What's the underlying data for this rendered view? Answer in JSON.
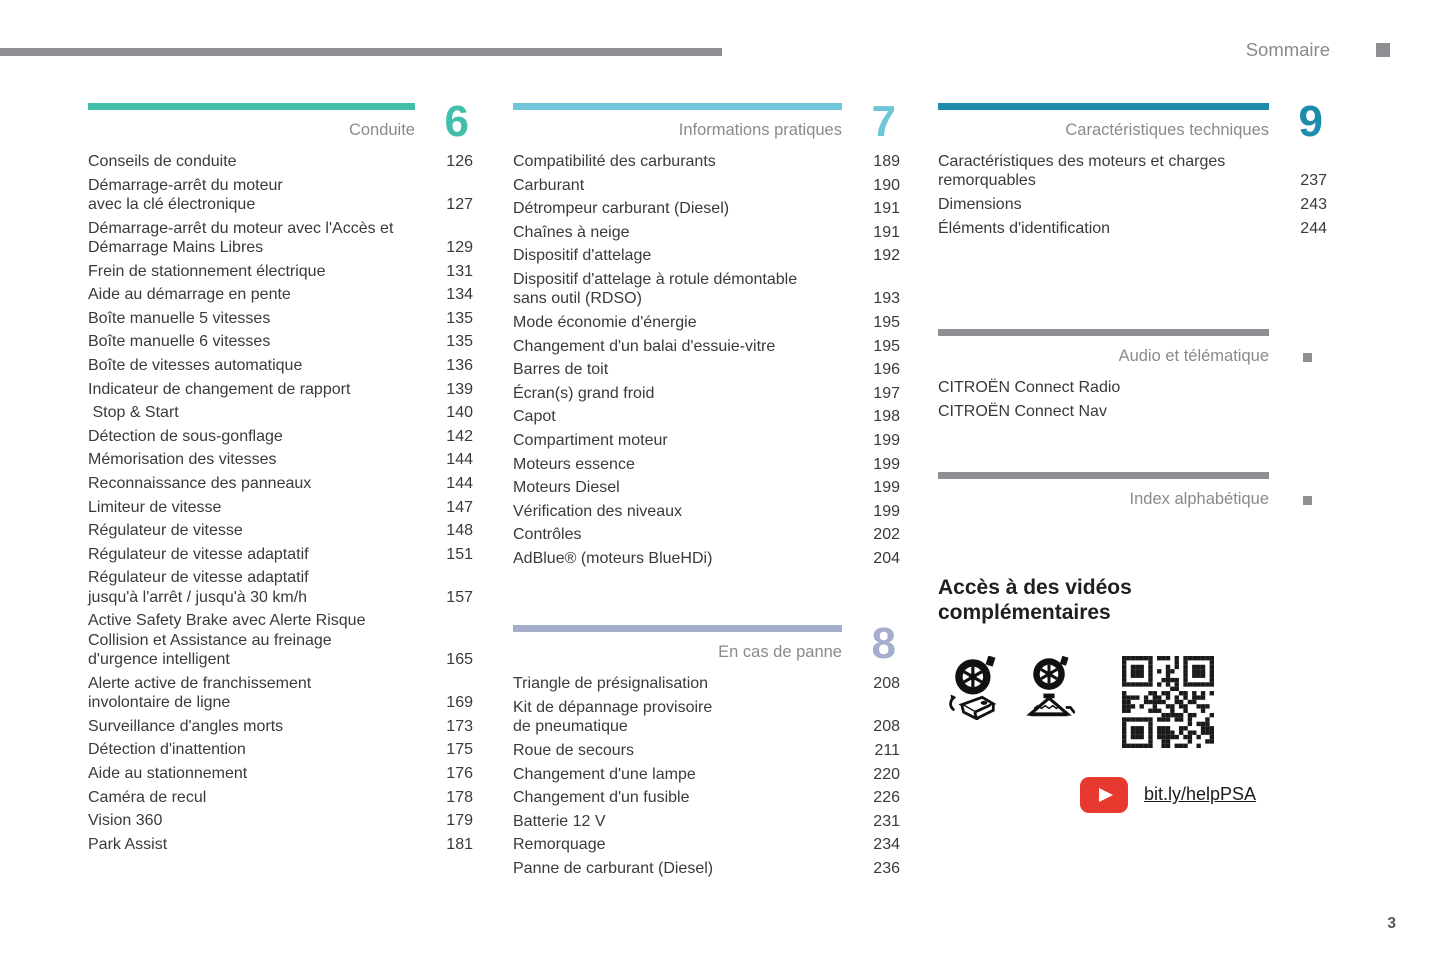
{
  "header": {
    "title": "Sommaire",
    "page_number": "3"
  },
  "colors": {
    "teal": "#42bfab",
    "light_blue": "#6fc6d9",
    "blue_gray": "#a6aecd",
    "dark_cyan": "#1e8cab",
    "gray_bar": "#8e8e93",
    "youtube_red": "#e8392e"
  },
  "sections": {
    "conduite": {
      "title": "Conduite",
      "number": "6",
      "color": "#42bfab",
      "items": [
        {
          "label": "Conseils de conduite",
          "page": "126"
        },
        {
          "label": "Démarrage-arrêt du moteur\navec la clé électronique",
          "page": "127"
        },
        {
          "label": "Démarrage-arrêt du moteur avec l'Accès et\nDémarrage Mains Libres",
          "page": "129"
        },
        {
          "label": "Frein de stationnement électrique",
          "page": "131"
        },
        {
          "label": "Aide au démarrage en pente",
          "page": "134"
        },
        {
          "label": "Boîte manuelle 5 vitesses",
          "page": "135"
        },
        {
          "label": "Boîte manuelle 6 vitesses",
          "page": "135"
        },
        {
          "label": "Boîte de vitesses automatique",
          "page": "136"
        },
        {
          "label": "Indicateur de changement de rapport",
          "page": "139"
        },
        {
          "label": " Stop & Start",
          "page": "140"
        },
        {
          "label": "Détection de sous-gonflage",
          "page": "142"
        },
        {
          "label": "Mémorisation des vitesses",
          "page": "144"
        },
        {
          "label": "Reconnaissance des panneaux",
          "page": "144"
        },
        {
          "label": "Limiteur de vitesse",
          "page": "147"
        },
        {
          "label": "Régulateur de vitesse",
          "page": "148"
        },
        {
          "label": "Régulateur de vitesse adaptatif",
          "page": "151"
        },
        {
          "label": "Régulateur de vitesse adaptatif\njusqu'à l'arrêt / jusqu'à 30 km/h",
          "page": "157"
        },
        {
          "label": "Active Safety Brake avec Alerte Risque\nCollision et Assistance au freinage\nd'urgence intelligent",
          "page": "165"
        },
        {
          "label": "Alerte active de franchissement\ninvolontaire de ligne",
          "page": "169"
        },
        {
          "label": "Surveillance d'angles morts",
          "page": "173"
        },
        {
          "label": "Détection d'inattention",
          "page": "175"
        },
        {
          "label": "Aide au stationnement",
          "page": "176"
        },
        {
          "label": "Caméra de recul",
          "page": "178"
        },
        {
          "label": "Vision 360",
          "page": "179"
        },
        {
          "label": "Park Assist",
          "page": "181"
        }
      ]
    },
    "infos": {
      "title": "Informations pratiques",
      "number": "7",
      "color": "#6fc6d9",
      "items": [
        {
          "label": "Compatibilité des carburants",
          "page": "189"
        },
        {
          "label": "Carburant",
          "page": "190"
        },
        {
          "label": "Détrompeur carburant (Diesel)",
          "page": "191"
        },
        {
          "label": "Chaînes à neige",
          "page": "191"
        },
        {
          "label": "Dispositif d'attelage",
          "page": "192"
        },
        {
          "label": "Dispositif d'attelage à rotule démontable\nsans outil (RDSO)",
          "page": "193"
        },
        {
          "label": "Mode économie d'énergie",
          "page": "195"
        },
        {
          "label": "Changement d'un balai d'essuie-vitre",
          "page": "195"
        },
        {
          "label": "Barres de toit",
          "page": "196"
        },
        {
          "label": "Écran(s) grand froid",
          "page": "197"
        },
        {
          "label": "Capot",
          "page": "198"
        },
        {
          "label": "Compartiment moteur",
          "page": "199"
        },
        {
          "label": "Moteurs essence",
          "page": "199"
        },
        {
          "label": "Moteurs Diesel",
          "page": "199"
        },
        {
          "label": "Vérification des niveaux",
          "page": "199"
        },
        {
          "label": "Contrôles",
          "page": "202"
        },
        {
          "label": "AdBlue® (moteurs BlueHDi)",
          "page": "204"
        }
      ]
    },
    "panne": {
      "title": "En cas de panne",
      "number": "8",
      "color": "#a6aecd",
      "items": [
        {
          "label": "Triangle de présignalisation",
          "page": "208"
        },
        {
          "label": "Kit de dépannage provisoire\nde pneumatique",
          "page": "208"
        },
        {
          "label": "Roue de secours",
          "page": "211"
        },
        {
          "label": "Changement d'une lampe",
          "page": "220"
        },
        {
          "label": "Changement d'un fusible",
          "page": "226"
        },
        {
          "label": "Batterie 12 V",
          "page": "231"
        },
        {
          "label": "Remorquage",
          "page": "234"
        },
        {
          "label": "Panne de carburant (Diesel)",
          "page": "236"
        }
      ]
    },
    "caracteristiques": {
      "title": "Caractéristiques techniques",
      "number": "9",
      "color": "#1e8cab",
      "items": [
        {
          "label": "Caractéristiques des moteurs et charges\nremorquables",
          "page": "237"
        },
        {
          "label": "Dimensions",
          "page": "243"
        },
        {
          "label": "Éléments d'identification",
          "page": "244"
        }
      ]
    },
    "audio": {
      "title": "Audio et télématique",
      "color": "#8e8e93",
      "items": [
        {
          "label": "CITROËN Connect Radio"
        },
        {
          "label": "CITROËN Connect Nav"
        }
      ]
    },
    "index": {
      "title": "Index alphabétique",
      "color": "#8e8e93",
      "items": []
    }
  },
  "videos": {
    "heading": "Accès à des vidéos\ncomplémentaires",
    "link_label": "bit.ly/helpPSA",
    "icons": [
      "tire-repair-kit-icon",
      "tire-jack-icon",
      "qr-code",
      "youtube-icon"
    ]
  }
}
